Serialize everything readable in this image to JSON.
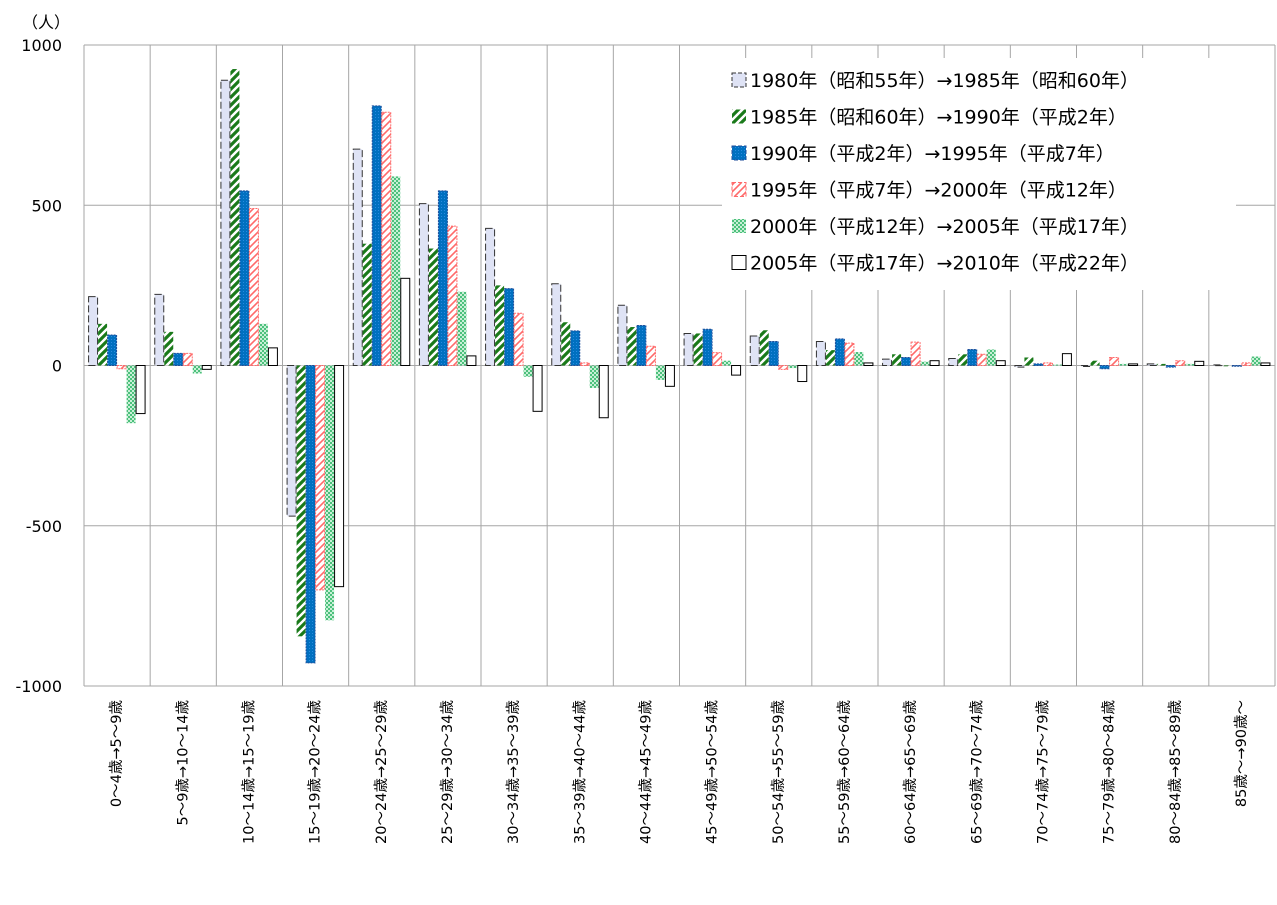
{
  "chart_data": {
    "type": "bar",
    "unit_label": "（人）",
    "ylim": [
      -1000,
      1000
    ],
    "yticks": [
      1000,
      500,
      0,
      -500,
      -1000
    ],
    "grid": true,
    "legend_position": "top-right",
    "categories": [
      "0～4歳→5～9歳",
      "5～9歳→10～14歳",
      "10～14歳→15～19歳",
      "15～19歳→20～24歳",
      "20～24歳→25～29歳",
      "25～29歳→30～34歳",
      "30～34歳→35～39歳",
      "35～39歳→40～44歳",
      "40～44歳→45～49歳",
      "45～49歳→50～54歳",
      "50～54歳→55～59歳",
      "55～59歳→60～64歳",
      "60～64歳→65～69歳",
      "65～69歳→70～74歳",
      "70～74歳→75～79歳",
      "75～79歳→80～84歳",
      "80～84歳→85～89歳",
      "85歳～→90歳～"
    ],
    "series": [
      {
        "name": "1980年（昭和55年）→1985年（昭和60年）",
        "pattern": "dashed-lavender",
        "color": "#dfe3f5",
        "values": [
          215,
          222,
          890,
          -470,
          675,
          505,
          428,
          255,
          188,
          100,
          92,
          75,
          20,
          22,
          -5,
          -3,
          5,
          2
        ]
      },
      {
        "name": "1985年（昭和60年）→1990年（平成2年）",
        "pattern": "green-diagonal",
        "color": "#1a7a1a",
        "values": [
          130,
          105,
          925,
          -845,
          380,
          365,
          250,
          135,
          120,
          100,
          110,
          48,
          35,
          35,
          25,
          15,
          5,
          0
        ]
      },
      {
        "name": "1990年（平成2年）→1995年（平成7年）",
        "pattern": "blue-solid",
        "color": "#0070c0",
        "values": [
          95,
          38,
          545,
          -928,
          810,
          545,
          240,
          108,
          125,
          113,
          75,
          83,
          25,
          50,
          5,
          -10,
          -5,
          0
        ]
      },
      {
        "name": "1995年（平成7年）→2000年（平成12年）",
        "pattern": "red-diagonal",
        "color": "#ff6666",
        "values": [
          -10,
          38,
          490,
          -700,
          790,
          435,
          163,
          8,
          60,
          40,
          -12,
          70,
          73,
          35,
          8,
          25,
          15,
          8
        ]
      },
      {
        "name": "2000年（平成12年）→2005年（平成17年）",
        "pattern": "green-checker",
        "color": "#5ccc8a",
        "values": [
          -180,
          -25,
          130,
          -795,
          590,
          230,
          -35,
          -70,
          -45,
          15,
          -8,
          42,
          12,
          50,
          3,
          5,
          5,
          28
        ]
      },
      {
        "name": "2005年（平成17年）→2010年（平成22年）",
        "pattern": "white",
        "color": "#ffffff",
        "values": [
          -150,
          -12,
          55,
          -690,
          272,
          30,
          -143,
          -163,
          -65,
          -30,
          -50,
          8,
          15,
          15,
          37,
          5,
          13,
          8
        ]
      }
    ]
  }
}
